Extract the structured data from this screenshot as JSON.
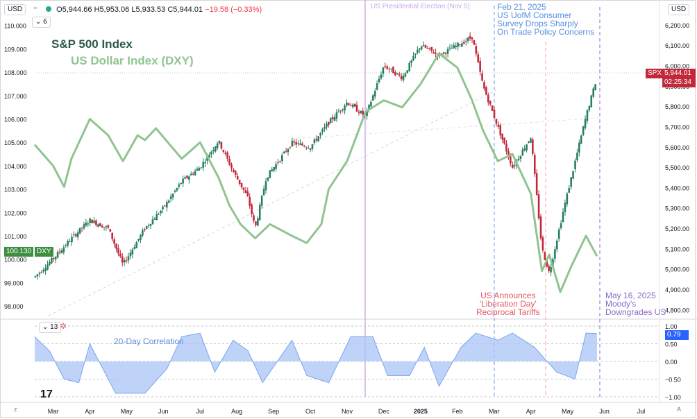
{
  "header": {
    "currency_left": "USD",
    "currency_right": "USD",
    "ohlc": {
      "o": "O5,944.66",
      "h": "H5,953.06",
      "l": "L5,933.53",
      "c": "C5,944.01",
      "chg": "−19.58 (−0.33%)"
    },
    "indicator_count": "6",
    "sub_count": "13"
  },
  "legend": {
    "spx": "S&P 500 Index",
    "dxy": "US Dollar Index (DXY)"
  },
  "colors": {
    "spx_up": "#26805f",
    "spx_down": "#c2283a",
    "dxy": "#8fc490",
    "corr_fill": "#a9c4f5",
    "corr_line": "#7aa3ef",
    "election": "#c9a9e8",
    "feb": "#6a9be8",
    "apr": "#f2a0a8",
    "may": "#8a6bc9"
  },
  "annotations": {
    "election": "US Presidential Election (Nov 5)",
    "feb": [
      "Feb 21, 2025",
      "US UofM Consumer",
      "Survey Drops Sharply",
      "On Trade Policy Concerns"
    ],
    "apr": [
      "US Announces",
      "'Liberation Day'",
      "Reciprocal Tariffs"
    ],
    "may": [
      "May 16, 2025",
      "Moody's",
      "Downgrades US"
    ],
    "corr_label": "20-Day Correlation"
  },
  "price_tags": {
    "spx_name": "SPX",
    "spx_price": "5,944.01",
    "spx_time": "02:25:34",
    "dxy_value": "100.130",
    "dxy_name": "DXY",
    "corr_value": "0.79"
  },
  "chart_data": [
    {
      "type": "line",
      "title": "S&P 500 Index / US Dollar Index (DXY)",
      "x_ticks": [
        "Mar",
        "Apr",
        "May",
        "Jun",
        "Jul",
        "Aug",
        "Sep",
        "Oct",
        "Nov",
        "Dec",
        "2025",
        "Feb",
        "Mar",
        "Apr",
        "May",
        "Jun",
        "Jul"
      ],
      "y_left_ticks": [
        "110.000",
        "109.000",
        "108.000",
        "107.000",
        "106.000",
        "105.000",
        "104.000",
        "103.000",
        "102.000",
        "101.000",
        "100.000",
        "99.000",
        "98.000"
      ],
      "y_right_ticks": [
        "6,200.00",
        "6,100.00",
        "6,000.00",
        "5,900.00",
        "5,800.00",
        "5,700.00",
        "5,600.00",
        "5,500.00",
        "5,400.00",
        "5,300.00",
        "5,200.00",
        "5,100.00",
        "5,000.00",
        "4,900.00",
        "4,800.00"
      ],
      "y_left_range": [
        97.5,
        110.2
      ],
      "y_right_range": [
        4760,
        6220
      ],
      "series": [
        {
          "name": "S&P 500 Index",
          "axis": "right",
          "points": [
            [
              0,
              4960
            ],
            [
              0.5,
              5050
            ],
            [
              1,
              5150
            ],
            [
              1.5,
              5240
            ],
            [
              2,
              5200
            ],
            [
              2.4,
              5020
            ],
            [
              3,
              5200
            ],
            [
              3.5,
              5300
            ],
            [
              4,
              5430
            ],
            [
              4.5,
              5500
            ],
            [
              5,
              5630
            ],
            [
              5.4,
              5480
            ],
            [
              5.8,
              5350
            ],
            [
              6,
              5200
            ],
            [
              6.3,
              5450
            ],
            [
              7,
              5620
            ],
            [
              7.5,
              5600
            ],
            [
              8,
              5720
            ],
            [
              8.5,
              5820
            ],
            [
              9,
              5750
            ],
            [
              9.5,
              6000
            ],
            [
              10,
              5940
            ],
            [
              10.5,
              6100
            ],
            [
              11,
              6050
            ],
            [
              11.5,
              6100
            ],
            [
              11.9,
              6140
            ],
            [
              12.2,
              5900
            ],
            [
              12.6,
              5700
            ],
            [
              13,
              5500
            ],
            [
              13.5,
              5650
            ],
            [
              13.8,
              5100
            ],
            [
              14,
              4980
            ],
            [
              14.4,
              5300
            ],
            [
              14.8,
              5600
            ],
            [
              15,
              5750
            ],
            [
              15.3,
              5944
            ]
          ]
        },
        {
          "name": "US Dollar Index (DXY)",
          "axis": "left",
          "points": [
            [
              0,
              104.9
            ],
            [
              0.5,
              104
            ],
            [
              0.8,
              103.1
            ],
            [
              1,
              104.3
            ],
            [
              1.5,
              106
            ],
            [
              2,
              105.3
            ],
            [
              2.4,
              104.2
            ],
            [
              2.8,
              105.3
            ],
            [
              3,
              105.1
            ],
            [
              3.3,
              105.6
            ],
            [
              4,
              104.3
            ],
            [
              4.5,
              105
            ],
            [
              5,
              103.5
            ],
            [
              5.3,
              102.3
            ],
            [
              5.6,
              101.5
            ],
            [
              6,
              100.9
            ],
            [
              6.4,
              101.5
            ],
            [
              7,
              101
            ],
            [
              7.4,
              100.7
            ],
            [
              7.8,
              101.5
            ],
            [
              8,
              103
            ],
            [
              8.5,
              104.2
            ],
            [
              9,
              106.3
            ],
            [
              9.5,
              106.8
            ],
            [
              10,
              106.5
            ],
            [
              10.5,
              107.5
            ],
            [
              11,
              108.8
            ],
            [
              11.5,
              108.2
            ],
            [
              11.9,
              106.8
            ],
            [
              12.2,
              105.5
            ],
            [
              12.6,
              104.2
            ],
            [
              13,
              104.5
            ],
            [
              13.5,
              102.8
            ],
            [
              13.8,
              99.5
            ],
            [
              14,
              100.2
            ],
            [
              14.3,
              98.6
            ],
            [
              14.6,
              99.7
            ],
            [
              15,
              101
            ],
            [
              15.3,
              100.13
            ]
          ]
        }
      ]
    },
    {
      "type": "area",
      "title": "20-Day Correlation",
      "y_ticks": [
        "1.00",
        "0.50",
        "0.00",
        "−0.50",
        "−1.00"
      ],
      "ylim": [
        -1,
        1
      ],
      "series": [
        {
          "name": "20-Day Correlation",
          "points": [
            [
              0,
              0.7
            ],
            [
              0.4,
              0.3
            ],
            [
              0.8,
              -0.5
            ],
            [
              1.2,
              -0.6
            ],
            [
              1.5,
              0.5
            ],
            [
              1.9,
              -0.3
            ],
            [
              2.2,
              -0.9
            ],
            [
              3,
              -0.9
            ],
            [
              3.6,
              -0.2
            ],
            [
              4,
              0.7
            ],
            [
              4.5,
              0.8
            ],
            [
              4.9,
              -0.3
            ],
            [
              5.4,
              0.6
            ],
            [
              5.8,
              0.3
            ],
            [
              6.2,
              -0.6
            ],
            [
              7,
              0.6
            ],
            [
              7.4,
              -0.4
            ],
            [
              8,
              -0.6
            ],
            [
              8.6,
              0.7
            ],
            [
              9.2,
              0.7
            ],
            [
              9.6,
              -0.4
            ],
            [
              10.2,
              -0.4
            ],
            [
              10.6,
              0.4
            ],
            [
              11,
              -0.7
            ],
            [
              11.6,
              0.4
            ],
            [
              12,
              0.8
            ],
            [
              12.6,
              0.6
            ],
            [
              13,
              0.8
            ],
            [
              13.6,
              0.4
            ],
            [
              14.2,
              -0.3
            ],
            [
              14.7,
              -0.5
            ],
            [
              15,
              0.8
            ],
            [
              15.3,
              0.79
            ]
          ]
        }
      ]
    }
  ]
}
